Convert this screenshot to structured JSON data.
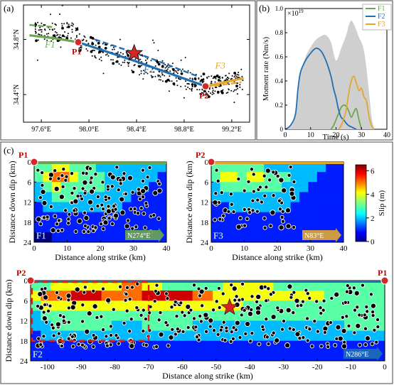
{
  "panel_labels": {
    "a": "(a)",
    "b": "(b)",
    "c": "(c)"
  },
  "colors": {
    "F1": "#6aa84f",
    "F2": "#1f6fb2",
    "F3": "#e3a72f",
    "point_marker": "#d62728",
    "epicenter": "#d62728",
    "gray_fill": "#cfcfcf"
  },
  "chart_data": [
    {
      "id": "map",
      "type": "scatter",
      "x_ticks": [
        "97.6°E",
        "98.0°E",
        "98.4°E",
        "98.8°E",
        "99.2°E"
      ],
      "x_tick_values": [
        97.6,
        98.0,
        98.4,
        98.8,
        99.2
      ],
      "y_ticks": [
        "34.4°N",
        "34.8°N"
      ],
      "y_tick_values": [
        34.4,
        34.8
      ],
      "xlim": [
        97.45,
        99.35
      ],
      "ylim": [
        34.2,
        35.05
      ],
      "fault_labels": [
        {
          "text": "F1",
          "lon": 97.63,
          "lat": 34.74,
          "color": "#6aa84f"
        },
        {
          "text": "F2",
          "lon": 98.46,
          "lat": 34.56,
          "color": "#1f6fb2"
        },
        {
          "text": "F3",
          "lon": 99.06,
          "lat": 34.59,
          "color": "#e3a72f"
        }
      ],
      "points": [
        {
          "text": "P1",
          "lon": 97.91,
          "lat": 34.78
        },
        {
          "text": "P2",
          "lon": 98.98,
          "lat": 34.46
        }
      ],
      "epicenter": {
        "lon": 98.38,
        "lat": 34.7
      },
      "traces": [
        {
          "name": "F1",
          "color": "#6aa84f",
          "dash": false,
          "pts": [
            [
              97.5,
              34.83
            ],
            [
              97.7,
              34.81
            ],
            [
              97.91,
              34.78
            ]
          ]
        },
        {
          "name": "F1",
          "color": "#6aa84f",
          "dash": true,
          "pts": [
            [
              97.5,
              34.905
            ],
            [
              97.7,
              34.89
            ]
          ]
        },
        {
          "name": "F2",
          "color": "#1f6fb2",
          "dash": false,
          "pts": [
            [
              97.91,
              34.78
            ],
            [
              98.4,
              34.64
            ],
            [
              98.98,
              34.46
            ]
          ]
        },
        {
          "name": "F2",
          "color": "#1f6fb2",
          "dash": true,
          "pts": [
            [
              98.05,
              34.8
            ],
            [
              98.5,
              34.67
            ],
            [
              98.92,
              34.53
            ]
          ]
        },
        {
          "name": "F3",
          "color": "#e3a72f",
          "dash": false,
          "pts": [
            [
              98.98,
              34.46
            ],
            [
              99.3,
              34.52
            ]
          ]
        },
        {
          "name": "F3",
          "color": "#e3a72f",
          "dash": true,
          "pts": [
            [
              98.98,
              34.455
            ],
            [
              99.28,
              34.49
            ]
          ]
        }
      ]
    },
    {
      "id": "moment_rate",
      "type": "line",
      "ylabel": "Moment rate (Nm/s)",
      "xlabel": "Time (s)",
      "y_multiplier": "×10",
      "y_multiplier_exp": "19",
      "xlim": [
        0,
        40
      ],
      "ylim": [
        0,
        1.0
      ],
      "x_ticks": [
        0,
        10,
        20,
        30,
        40
      ],
      "y_ticks": [
        0,
        0.2,
        0.4,
        0.6,
        0.8,
        1.0
      ],
      "y_tick_labels": [
        "0",
        "0.2",
        "0.4",
        "0.6",
        "0.8",
        "1.0"
      ],
      "total": {
        "x": [
          0,
          2,
          4,
          6,
          8,
          10,
          12,
          14,
          16,
          18,
          20,
          22,
          24,
          25,
          26,
          27,
          28,
          29,
          30,
          31,
          32,
          33,
          34,
          35
        ],
        "y": [
          0,
          0.03,
          0.13,
          0.45,
          0.6,
          0.68,
          0.74,
          0.77,
          0.78,
          0.72,
          0.57,
          0.67,
          0.78,
          0.86,
          0.9,
          0.87,
          0.82,
          0.76,
          0.72,
          0.65,
          0.5,
          0.3,
          0.1,
          0
        ]
      },
      "series": [
        {
          "name": "F1",
          "color": "#6aa84f",
          "x": [
            18,
            19,
            20,
            21,
            22,
            23,
            24,
            25,
            26,
            27,
            28,
            29,
            30
          ],
          "y": [
            0,
            0.03,
            0.08,
            0.13,
            0.18,
            0.2,
            0.19,
            0.15,
            0.1,
            0.14,
            0.17,
            0.08,
            0
          ]
        },
        {
          "name": "F2",
          "color": "#1f6fb2",
          "x": [
            0,
            2,
            4,
            5,
            6,
            8,
            10,
            12,
            14,
            16,
            18,
            19,
            20,
            21,
            22,
            23,
            24,
            25,
            26,
            27,
            28
          ],
          "y": [
            0,
            0.03,
            0.12,
            0.33,
            0.47,
            0.57,
            0.63,
            0.67,
            0.65,
            0.57,
            0.44,
            0.34,
            0.26,
            0.16,
            0.1,
            0.08,
            0.05,
            0.03,
            0.02,
            0.01,
            0
          ]
        },
        {
          "name": "F3",
          "color": "#e3a72f",
          "x": [
            21,
            22,
            23,
            24,
            25,
            26,
            27,
            28,
            29,
            30,
            31,
            32,
            33,
            34,
            35
          ],
          "y": [
            0,
            0.03,
            0.09,
            0.16,
            0.3,
            0.4,
            0.44,
            0.38,
            0.32,
            0.34,
            0.27,
            0.23,
            0.1,
            0.03,
            0
          ]
        }
      ]
    },
    {
      "id": "slip_F1",
      "type": "heatmap",
      "xlabel": "Distance along strike (km)",
      "ylabel": "Distance down dip (km)",
      "x_ticks": [
        0,
        10,
        20,
        30,
        40
      ],
      "y_ticks": [
        0,
        6,
        12,
        18,
        24
      ],
      "xlim": [
        0,
        40
      ],
      "ylim": [
        0,
        24
      ],
      "segment": "F1",
      "end_label": "P1",
      "direction": "N274°E",
      "grid": [
        [
          3,
          3,
          4,
          4,
          3,
          3,
          3,
          2,
          2,
          2,
          2,
          2,
          2,
          2,
          2
        ],
        [
          3,
          4,
          5,
          5,
          4,
          3,
          3,
          3,
          2,
          2,
          2,
          2,
          2,
          2,
          1
        ],
        [
          2,
          3,
          4,
          3,
          3,
          3,
          3,
          3,
          2,
          2,
          2,
          2,
          2,
          1,
          1
        ],
        [
          2,
          2,
          3,
          3,
          3,
          2,
          2,
          2,
          2,
          2,
          2,
          1,
          1,
          1,
          1
        ],
        [
          1,
          2,
          2,
          2,
          2,
          2,
          2,
          2,
          2,
          2,
          1,
          1,
          1,
          1,
          1
        ],
        [
          1,
          1,
          1,
          1,
          1,
          1,
          1,
          1,
          1,
          1,
          1,
          1,
          1,
          1,
          1
        ],
        [
          1,
          1,
          1,
          1,
          1,
          1,
          1,
          1,
          1,
          1,
          1,
          1,
          1,
          1,
          1
        ],
        [
          0,
          0,
          1,
          1,
          1,
          1,
          1,
          1,
          1,
          1,
          1,
          1,
          1,
          1,
          1
        ]
      ]
    },
    {
      "id": "slip_F3",
      "type": "heatmap",
      "xlabel": "Distance along strike (km)",
      "ylabel": "Distance down dip (km)",
      "x_ticks": [
        0,
        10,
        20,
        30,
        40
      ],
      "y_ticks": [
        0,
        6,
        12,
        18,
        24
      ],
      "xlim": [
        0,
        40
      ],
      "ylim": [
        0,
        24
      ],
      "segment": "F3",
      "end_label": "P2",
      "direction": "N83°E",
      "grid": [
        [
          3,
          3,
          3,
          3,
          3,
          3,
          2,
          2,
          2,
          2,
          2,
          2,
          2,
          1,
          1
        ],
        [
          3,
          4,
          4,
          3,
          4,
          4,
          3,
          3,
          3,
          2,
          2,
          2,
          1,
          1,
          1
        ],
        [
          2,
          3,
          3,
          3,
          3,
          3,
          3,
          3,
          2,
          2,
          2,
          1,
          1,
          1,
          1
        ],
        [
          2,
          2,
          2,
          2,
          2,
          2,
          2,
          2,
          2,
          2,
          1,
          1,
          1,
          1,
          1
        ],
        [
          1,
          1,
          2,
          2,
          2,
          2,
          2,
          2,
          2,
          1,
          1,
          1,
          1,
          1,
          1
        ],
        [
          1,
          1,
          1,
          1,
          1,
          1,
          1,
          1,
          1,
          1,
          1,
          1,
          1,
          1,
          1
        ],
        [
          1,
          1,
          1,
          1,
          1,
          1,
          1,
          1,
          1,
          1,
          1,
          1,
          1,
          1,
          1
        ],
        [
          1,
          1,
          1,
          1,
          1,
          1,
          1,
          1,
          1,
          1,
          1,
          1,
          1,
          1,
          1
        ]
      ]
    },
    {
      "id": "slip_F2",
      "type": "heatmap",
      "xlabel": "Distance along strike (km)",
      "ylabel": "Distance down dip (km)",
      "x_ticks": [
        -100,
        -90,
        -80,
        -70,
        -60,
        -50,
        -40,
        -30,
        -20,
        -10,
        0
      ],
      "y_ticks": [
        0,
        6,
        12,
        18,
        24
      ],
      "xlim": [
        -105,
        0
      ],
      "ylim": [
        0,
        24
      ],
      "segment": "F2",
      "end_label_left": "P2",
      "end_label_right": "P1",
      "direction": "N286°E",
      "epicenter": {
        "x": -46,
        "y": 8
      },
      "box": {
        "x0": -105,
        "x1": -70,
        "y0": 0,
        "y1": 18
      },
      "grid": [
        [
          3,
          3,
          4,
          4,
          4,
          4,
          4,
          4,
          4,
          5,
          5,
          4,
          4,
          3,
          3,
          3,
          3,
          3,
          3,
          4,
          4,
          4,
          4,
          4,
          3,
          3,
          3,
          3,
          3,
          3,
          3,
          3,
          3,
          3,
          3
        ],
        [
          4,
          5,
          5,
          5,
          6,
          6,
          6,
          5,
          5,
          5,
          5,
          6,
          6,
          6,
          6,
          6,
          5,
          5,
          4,
          4,
          4,
          4,
          4,
          4,
          4,
          4,
          4,
          4,
          4,
          3,
          3,
          3,
          3,
          3,
          3
        ],
        [
          3,
          4,
          4,
          4,
          4,
          4,
          4,
          4,
          4,
          4,
          4,
          4,
          4,
          4,
          4,
          4,
          4,
          4,
          4,
          4,
          4,
          3,
          3,
          3,
          3,
          3,
          3,
          3,
          3,
          3,
          3,
          3,
          3,
          3,
          3
        ],
        [
          2,
          3,
          3,
          3,
          3,
          3,
          3,
          3,
          3,
          3,
          3,
          3,
          3,
          3,
          3,
          3,
          3,
          3,
          3,
          3,
          3,
          3,
          3,
          3,
          3,
          3,
          3,
          3,
          3,
          3,
          3,
          3,
          3,
          3,
          3
        ],
        [
          2,
          2,
          3,
          3,
          3,
          3,
          3,
          3,
          2,
          2,
          2,
          3,
          3,
          3,
          3,
          3,
          2,
          2,
          2,
          2,
          2,
          2,
          2,
          2,
          2,
          2,
          2,
          2,
          2,
          2,
          2,
          3,
          3,
          3,
          3
        ],
        [
          1,
          2,
          2,
          2,
          2,
          2,
          2,
          2,
          2,
          2,
          2,
          2,
          2,
          2,
          2,
          2,
          2,
          2,
          2,
          2,
          2,
          2,
          2,
          2,
          2,
          2,
          2,
          2,
          2,
          2,
          2,
          2,
          2,
          2,
          2
        ],
        [
          1,
          1,
          1,
          1,
          1,
          1,
          1,
          1,
          1,
          1,
          1,
          1,
          1,
          1,
          1,
          1,
          1,
          1,
          1,
          1,
          1,
          1,
          1,
          1,
          1,
          1,
          1,
          1,
          1,
          1,
          1,
          1,
          1,
          1,
          1
        ],
        [
          1,
          1,
          1,
          1,
          1,
          1,
          1,
          1,
          1,
          1,
          1,
          1,
          1,
          1,
          1,
          1,
          1,
          1,
          1,
          1,
          1,
          1,
          1,
          1,
          1,
          1,
          1,
          1,
          1,
          1,
          1,
          1,
          1,
          1,
          1
        ]
      ]
    },
    {
      "id": "colorbar",
      "type": "heatmap",
      "label": "Slip (m)",
      "ticks": [
        0,
        2,
        4,
        6
      ],
      "range": [
        0,
        6.5
      ]
    }
  ]
}
